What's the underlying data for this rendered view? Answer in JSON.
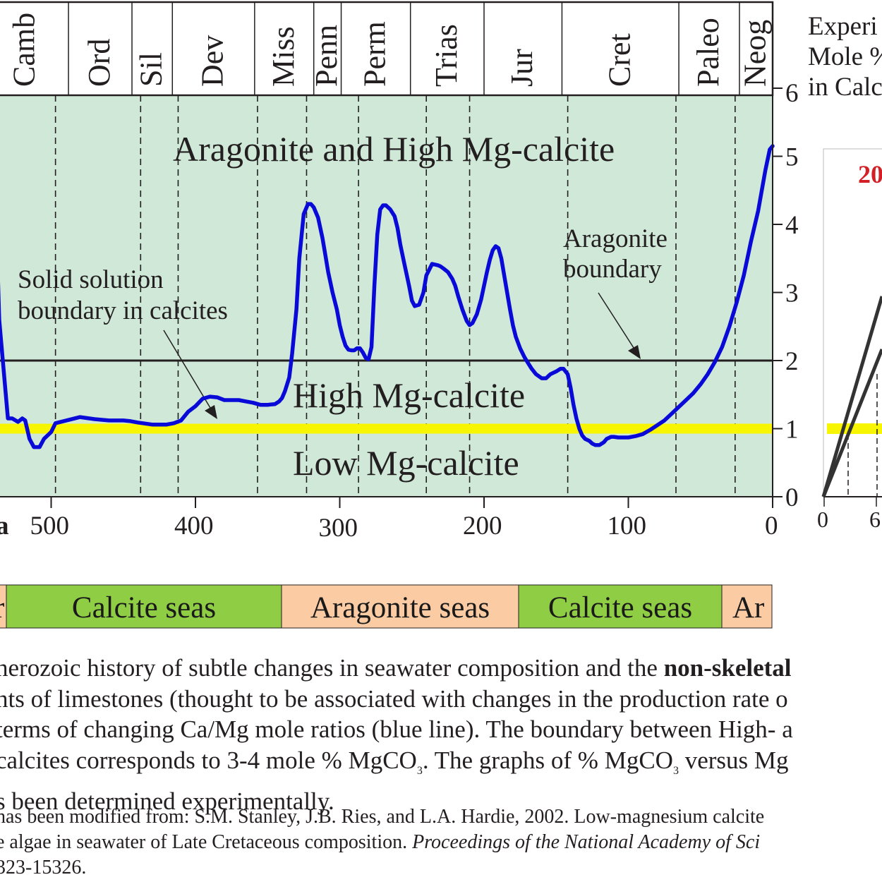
{
  "colors": {
    "background_band": "#cfe8d7",
    "curve": "#0a0ad8",
    "yellow_line": "#f7f500",
    "calcite_seas": "#8fcd45",
    "aragonite_seas": "#fbcca3",
    "text": "#231f20",
    "accent_red": "#d32027"
  },
  "chart_data": {
    "type": "line",
    "title": "",
    "xlabel": "Ma",
    "ylabel": "",
    "xlim": [
      540,
      0
    ],
    "ylim": [
      0,
      6
    ],
    "x_ticks": [
      "500",
      "400",
      "300",
      "200",
      "100",
      "0"
    ],
    "y_ticks": [
      "0",
      "1",
      "2",
      "3",
      "4",
      "5",
      "6"
    ],
    "periods": [
      {
        "name": "Camb",
        "start": 542,
        "end": 488
      },
      {
        "name": "Ord",
        "start": 488,
        "end": 444
      },
      {
        "name": "Sil",
        "start": 444,
        "end": 416
      },
      {
        "name": "Dev",
        "start": 416,
        "end": 359
      },
      {
        "name": "Miss",
        "start": 359,
        "end": 318
      },
      {
        "name": "Penn",
        "start": 318,
        "end": 299
      },
      {
        "name": "Perm",
        "start": 299,
        "end": 251
      },
      {
        "name": "Trias",
        "start": 251,
        "end": 200
      },
      {
        "name": "Jur",
        "start": 200,
        "end": 146
      },
      {
        "name": "Cret",
        "start": 146,
        "end": 65
      },
      {
        "name": "Paleo",
        "start": 65,
        "end": 23
      },
      {
        "name": "Neog",
        "start": 23,
        "end": 0
      }
    ],
    "boundary_ticks_ma": [
      497,
      438,
      412,
      357,
      323,
      287,
      240,
      210,
      142,
      67,
      26
    ],
    "series": [
      {
        "x": [
          542,
          540,
          538,
          536,
          530,
          527,
          523,
          520,
          518,
          515,
          512,
          508,
          505,
          500,
          497,
          480,
          470,
          460,
          450,
          445,
          440,
          430,
          420,
          415,
          410,
          405,
          400,
          395,
          390,
          385,
          380,
          375,
          370,
          365,
          360,
          355,
          350,
          345,
          342,
          340,
          338,
          335,
          333,
          330,
          328,
          325,
          322,
          320,
          318,
          315,
          312,
          310,
          308,
          305,
          302,
          300,
          298,
          296,
          294,
          292,
          290,
          288,
          286,
          284,
          282,
          280,
          278,
          276,
          274,
          272,
          270,
          268,
          265,
          262,
          260,
          258,
          255,
          252,
          250,
          248,
          245,
          242,
          240,
          236,
          232,
          230,
          228,
          225,
          222,
          220,
          218,
          215,
          212,
          210,
          208,
          205,
          202,
          200,
          198,
          196,
          194,
          192,
          190,
          188,
          186,
          184,
          182,
          180,
          178,
          175,
          172,
          170,
          167,
          164,
          160,
          157,
          154,
          150,
          147,
          145,
          142,
          140,
          138,
          136,
          134,
          132,
          130,
          127,
          125,
          123,
          120,
          117,
          115,
          112,
          110,
          107,
          104,
          100,
          95,
          90,
          85,
          80,
          75,
          70,
          65,
          60,
          55,
          50,
          45,
          40,
          35,
          30,
          25,
          20,
          15,
          10,
          5,
          2,
          0
        ],
        "y": [
          5.15,
          5.15,
          4.0,
          2.6,
          1.15,
          1.15,
          1.1,
          1.15,
          1.12,
          0.85,
          0.73,
          0.73,
          0.85,
          0.95,
          1.08,
          1.17,
          1.14,
          1.12,
          1.12,
          1.11,
          1.09,
          1.06,
          1.06,
          1.08,
          1.12,
          1.25,
          1.33,
          1.44,
          1.47,
          1.46,
          1.42,
          1.42,
          1.42,
          1.4,
          1.38,
          1.35,
          1.35,
          1.36,
          1.4,
          1.45,
          1.55,
          1.75,
          2.1,
          2.75,
          3.5,
          4.15,
          4.3,
          4.3,
          4.25,
          4.1,
          3.8,
          3.55,
          3.3,
          3.0,
          2.75,
          2.52,
          2.35,
          2.22,
          2.16,
          2.15,
          2.15,
          2.18,
          2.18,
          2.12,
          2.04,
          2.02,
          2.2,
          3.1,
          3.85,
          4.22,
          4.28,
          4.28,
          4.22,
          4.12,
          3.95,
          3.7,
          3.4,
          3.1,
          2.88,
          2.8,
          2.82,
          3.0,
          3.25,
          3.42,
          3.4,
          3.38,
          3.35,
          3.3,
          3.2,
          3.1,
          2.95,
          2.75,
          2.58,
          2.52,
          2.55,
          2.68,
          2.9,
          3.1,
          3.3,
          3.48,
          3.62,
          3.68,
          3.65,
          3.5,
          3.25,
          3.0,
          2.75,
          2.52,
          2.35,
          2.18,
          2.05,
          1.98,
          1.88,
          1.8,
          1.74,
          1.74,
          1.8,
          1.84,
          1.88,
          1.88,
          1.8,
          1.6,
          1.35,
          1.15,
          1.0,
          0.9,
          0.85,
          0.82,
          0.78,
          0.76,
          0.76,
          0.8,
          0.85,
          0.88,
          0.88,
          0.87,
          0.87,
          0.87,
          0.89,
          0.92,
          0.98,
          1.05,
          1.12,
          1.22,
          1.32,
          1.42,
          1.52,
          1.65,
          1.8,
          1.98,
          2.2,
          2.5,
          2.85,
          3.25,
          3.75,
          4.2,
          4.8,
          5.1,
          5.15
        ]
      }
    ],
    "reference_lines": [
      {
        "y": 1,
        "color": "#f7f500"
      },
      {
        "y": 2,
        "color": "#231f20"
      }
    ],
    "annotations": [
      {
        "text": "Aragonite and High Mg-calcite"
      },
      {
        "text": "High Mg-calcite"
      },
      {
        "text": "Low Mg-calcite"
      },
      {
        "text": "Solid solution"
      },
      {
        "text": "boundary in calcites"
      },
      {
        "text": "Aragonite"
      },
      {
        "text": "boundary"
      }
    ],
    "seas": [
      {
        "label": "r",
        "type": "aragonite"
      },
      {
        "label": "Calcite seas",
        "type": "calcite"
      },
      {
        "label": "Aragonite seas",
        "type": "aragonite"
      },
      {
        "label": "Calcite seas",
        "type": "calcite"
      },
      {
        "label": "Ar",
        "type": "aragonite"
      }
    ],
    "right_inset": {
      "title_lines": [
        "Experi",
        "Mole %",
        "in Calc"
      ],
      "red_label": "20",
      "x_ticks": [
        "0",
        "6"
      ]
    }
  },
  "caption": {
    "line1_pre": "nerozoic history of subtle changes in seawater composition and the ",
    "line1_bold": "non-skeletal",
    "line2": "nts of limestones (thought to be associated with changes in the production rate o",
    "line3": "terms of changing Ca/Mg mole ratios (blue line). The boundary between High- a",
    "line4_a": " calcites corresponds to 3-4 mole % MgCO",
    "line4_sub1": "3",
    "line4_b": ". The graphs of % MgCO",
    "line4_sub2": "3",
    "line4_c": " versus Mg",
    "line5": "s been determined experimentally.",
    "credit1": "has been modified from: S.M. Stanley, J.B. Ries, and L.A. Hardie, 2002. Low-magnesium calcite",
    "credit2_plain": "e algae in seawater of Late Cretaceous composition. ",
    "credit2_italic": "Proceedings of the National Academy of Sci",
    "credit3": "323-15326."
  }
}
